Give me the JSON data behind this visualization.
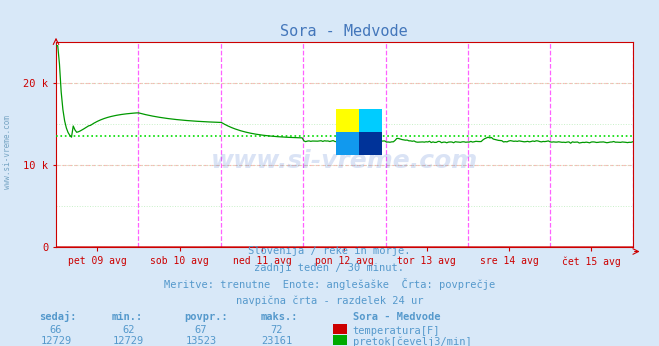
{
  "title": "Sora - Medvode",
  "bg_color": "#d8e8f8",
  "plot_bg_color": "#ffffff",
  "grid_color_h_pink": "#ffb0b0",
  "grid_color_h_green": "#c8f0c8",
  "vline_color": "#ff44ff",
  "avg_line_value": 13523,
  "avg_line_color": "#00dd00",
  "flow_line_color": "#009900",
  "temp_line_color": "#cc0000",
  "axis_color": "#cc0000",
  "text_color": "#5599cc",
  "title_color": "#4477bb",
  "x_labels": [
    "pet 09 avg",
    "sob 10 avg",
    "ned 11 avg",
    "pon 12 avg",
    "tor 13 avg",
    "sre 14 avg",
    "čet 15 avg"
  ],
  "ylim": [
    0,
    25000
  ],
  "ytick_vals": [
    0,
    10000,
    20000
  ],
  "ytick_labels": [
    "0",
    "10 k",
    "20 k"
  ],
  "subtitle_lines": [
    "Slovenija / reke in morje.",
    "zadnji teden / 30 minut.",
    "Meritve: trenutne  Enote: anglešaške  Črta: povprečje",
    "navpična črta - razdelek 24 ur"
  ],
  "legend_title": "Sora - Medvode",
  "legend_items": [
    {
      "label": "temperatura[F]",
      "color": "#cc0000"
    },
    {
      "label": "pretok[čevelj3/min]",
      "color": "#00aa00"
    }
  ],
  "table_headers": [
    "sedaj:",
    "min.:",
    "povpr.:",
    "maks.:"
  ],
  "table_row1": [
    "66",
    "62",
    "67",
    "72"
  ],
  "table_row2": [
    "12729",
    "12729",
    "13523",
    "23161"
  ],
  "watermark_text": "www.si-vreme.com",
  "watermark_color": "#3366cc",
  "watermark_alpha": 0.18,
  "side_text": "www.si-vreme.com",
  "side_text_color": "#6699bb",
  "logo_colors": [
    "#ffff00",
    "#00ccff",
    "#1199ee",
    "#003399"
  ],
  "n_days": 7,
  "n_per_day": 48
}
